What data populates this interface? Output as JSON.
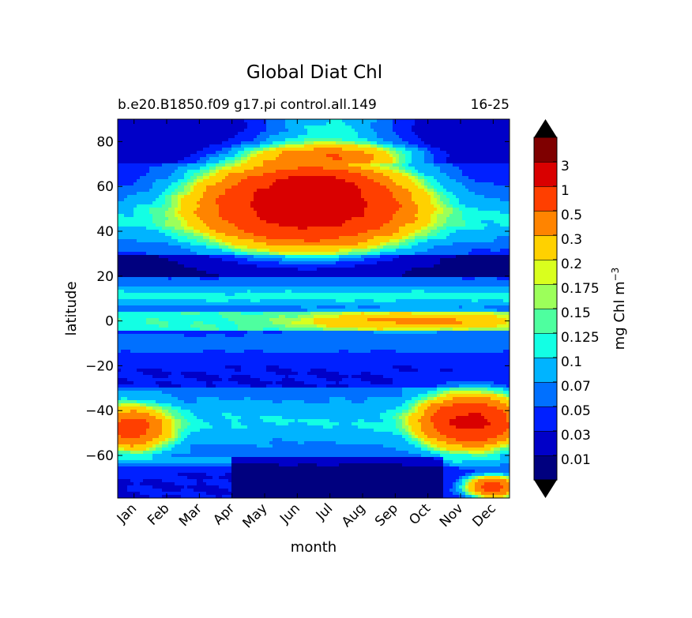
{
  "chart_data": {
    "type": "heatmap",
    "subtype": "filled-contour",
    "title": "Global Diat Chl",
    "subtitle_left": "b.e20.B1850.f09 g17.pi control.all.149",
    "subtitle_right": "16-25",
    "xlabel": "month",
    "ylabel": "latitude",
    "x_ticks": [
      "Jan",
      "Feb",
      "Mar",
      "Apr",
      "May",
      "Jun",
      "Jul",
      "Aug",
      "Sep",
      "Oct",
      "Nov",
      "Dec"
    ],
    "xlim": [
      0.5,
      12.5
    ],
    "y_ticks": [
      80,
      60,
      40,
      20,
      0,
      -20,
      -40,
      -60
    ],
    "y_tick_labels": [
      "80",
      "60",
      "40",
      "20",
      "0",
      "−20",
      "−40",
      "−60"
    ],
    "ylim": [
      -79,
      90
    ],
    "colorbar": {
      "label": "mg Chl m",
      "label_exponent": "−3",
      "extend": "both",
      "levels": [
        0.01,
        0.03,
        0.05,
        0.07,
        0.1,
        0.125,
        0.15,
        0.175,
        0.2,
        0.3,
        0.5,
        1,
        3
      ],
      "tick_labels": [
        "0.01",
        "0.03",
        "0.05",
        "0.07",
        "0.1",
        "0.125",
        "0.15",
        "0.175",
        "0.2",
        "0.3",
        "0.5",
        "1",
        "3"
      ],
      "colors": [
        "#00007f",
        "#0000c8",
        "#0020ff",
        "#0070ff",
        "#00b4ff",
        "#13ffe4",
        "#4eff9f",
        "#9cff5a",
        "#d9ff1e",
        "#ffd100",
        "#ff8400",
        "#ff3f00",
        "#d90000",
        "#7f0000"
      ],
      "under_color": "#000000",
      "over_color": "#000000"
    },
    "features": [
      {
        "name": "north-bloom",
        "lat": 52,
        "month": 6.3,
        "lat_width": 14,
        "month_width": 2.4,
        "value": 1.6
      },
      {
        "name": "north-bloom-peak",
        "lat": 59,
        "month": 6.6,
        "lat_width": 5,
        "month_width": 0.9,
        "value": 1.4
      },
      {
        "name": "south-bloom",
        "lat": -45,
        "month": 11.3,
        "lat_width": 9,
        "month_width": 1.2,
        "value": 1.1
      },
      {
        "name": "south-bloom-jan",
        "lat": -48,
        "month": 0.9,
        "lat_width": 8,
        "month_width": 1.0,
        "value": 0.55
      },
      {
        "name": "equatorial-band",
        "lat": 0,
        "month": 9.5,
        "lat_width": 3.5,
        "month_width": 3.0,
        "value": 0.22
      },
      {
        "name": "antarctic-margin",
        "lat": -74,
        "month": 12.0,
        "lat_width": 4,
        "month_width": 0.7,
        "value": 0.6
      }
    ]
  }
}
